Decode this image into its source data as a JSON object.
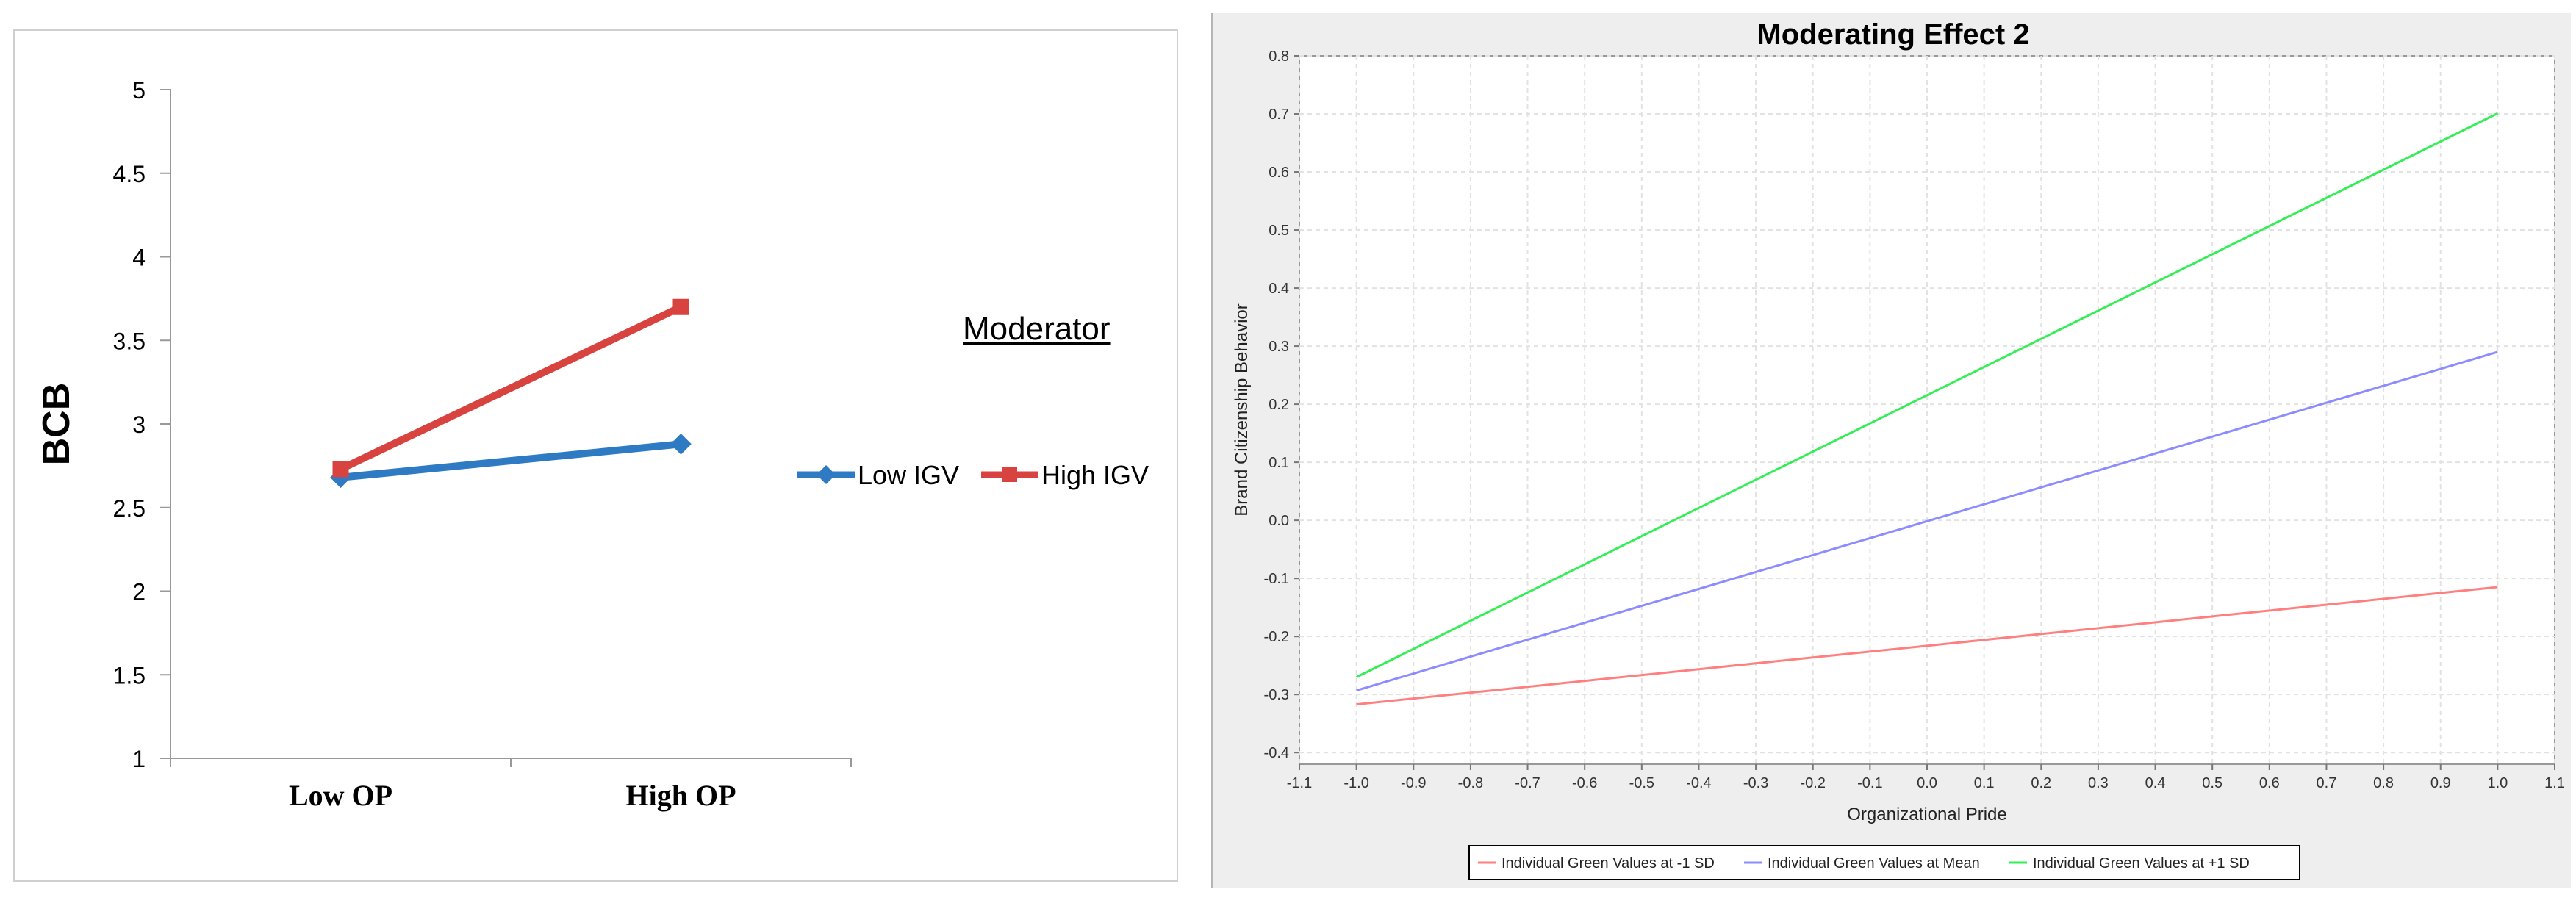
{
  "chart_data": [
    {
      "type": "line",
      "title": "",
      "xlabel": "",
      "ylabel": "BCB",
      "categories": [
        "Low OP",
        "High OP"
      ],
      "ylim": [
        1,
        5
      ],
      "yticks": [
        "1",
        "1.5",
        "2",
        "2.5",
        "3",
        "3.5",
        "4",
        "4.5",
        "5"
      ],
      "legend_title": "Moderator",
      "legend_position": "right",
      "series": [
        {
          "name": "Low IGV",
          "values": [
            2.68,
            2.88
          ],
          "color": "#2e7bc4",
          "marker": "diamond"
        },
        {
          "name": "High IGV",
          "values": [
            2.73,
            3.7
          ],
          "color": "#d9433f",
          "marker": "square"
        }
      ]
    },
    {
      "type": "line",
      "title": "Moderating Effect 2",
      "xlabel": "Organizational Pride",
      "ylabel": "Brand Citizenship Behavior",
      "xlim": [
        -1.1,
        1.1
      ],
      "ylim": [
        -0.42,
        0.8
      ],
      "xticks": [
        "-1.1",
        "-1.0",
        "-0.9",
        "-0.8",
        "-0.7",
        "-0.6",
        "-0.5",
        "-0.4",
        "-0.3",
        "-0.2",
        "-0.1",
        "0.0",
        "0.1",
        "0.2",
        "0.3",
        "0.4",
        "0.5",
        "0.6",
        "0.7",
        "0.8",
        "0.9",
        "1.0",
        "1.1"
      ],
      "yticks": [
        "-0.4",
        "-0.3",
        "-0.2",
        "-0.1",
        "0.0",
        "0.1",
        "0.2",
        "0.3",
        "0.4",
        "0.5",
        "0.6",
        "0.7",
        "0.8"
      ],
      "grid": true,
      "legend_position": "bottom",
      "series": [
        {
          "name": "Individual Green Values at -1 SD",
          "x": [
            -1.0,
            1.0
          ],
          "y": [
            -0.317,
            -0.115
          ],
          "color": "#ff7f7f"
        },
        {
          "name": "Individual Green Values at Mean",
          "x": [
            -1.0,
            1.0
          ],
          "y": [
            -0.293,
            0.29
          ],
          "color": "#8c8cff"
        },
        {
          "name": "Individual Green Values at +1 SD",
          "x": [
            -1.0,
            1.0
          ],
          "y": [
            -0.27,
            0.701
          ],
          "color": "#33ee55"
        }
      ]
    }
  ]
}
